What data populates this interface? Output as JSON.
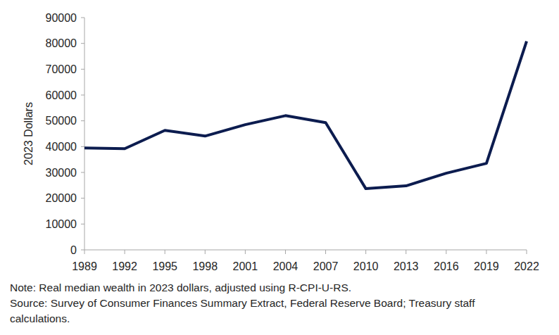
{
  "chart_data": {
    "type": "line",
    "y_label": "2023 Dollars",
    "categories": [
      "1989",
      "1992",
      "1995",
      "1998",
      "2001",
      "2004",
      "2007",
      "2010",
      "2013",
      "2016",
      "2019",
      "2022"
    ],
    "values": [
      39500,
      39200,
      46300,
      44100,
      48500,
      52000,
      49300,
      23700,
      24800,
      29700,
      33500,
      80800
    ],
    "color": "#0c1c4f",
    "ylim": [
      0,
      90000
    ],
    "yticks": [
      0,
      10000,
      20000,
      30000,
      40000,
      50000,
      60000,
      70000,
      80000,
      90000
    ],
    "grid": false,
    "notes": [
      "Note: Real median wealth in 2023 dollars, adjusted using R-CPI-U-RS.",
      "Source: Survey of Consumer Finances Summary Extract, Federal Reserve Board; Treasury staff",
      "calculations."
    ]
  }
}
